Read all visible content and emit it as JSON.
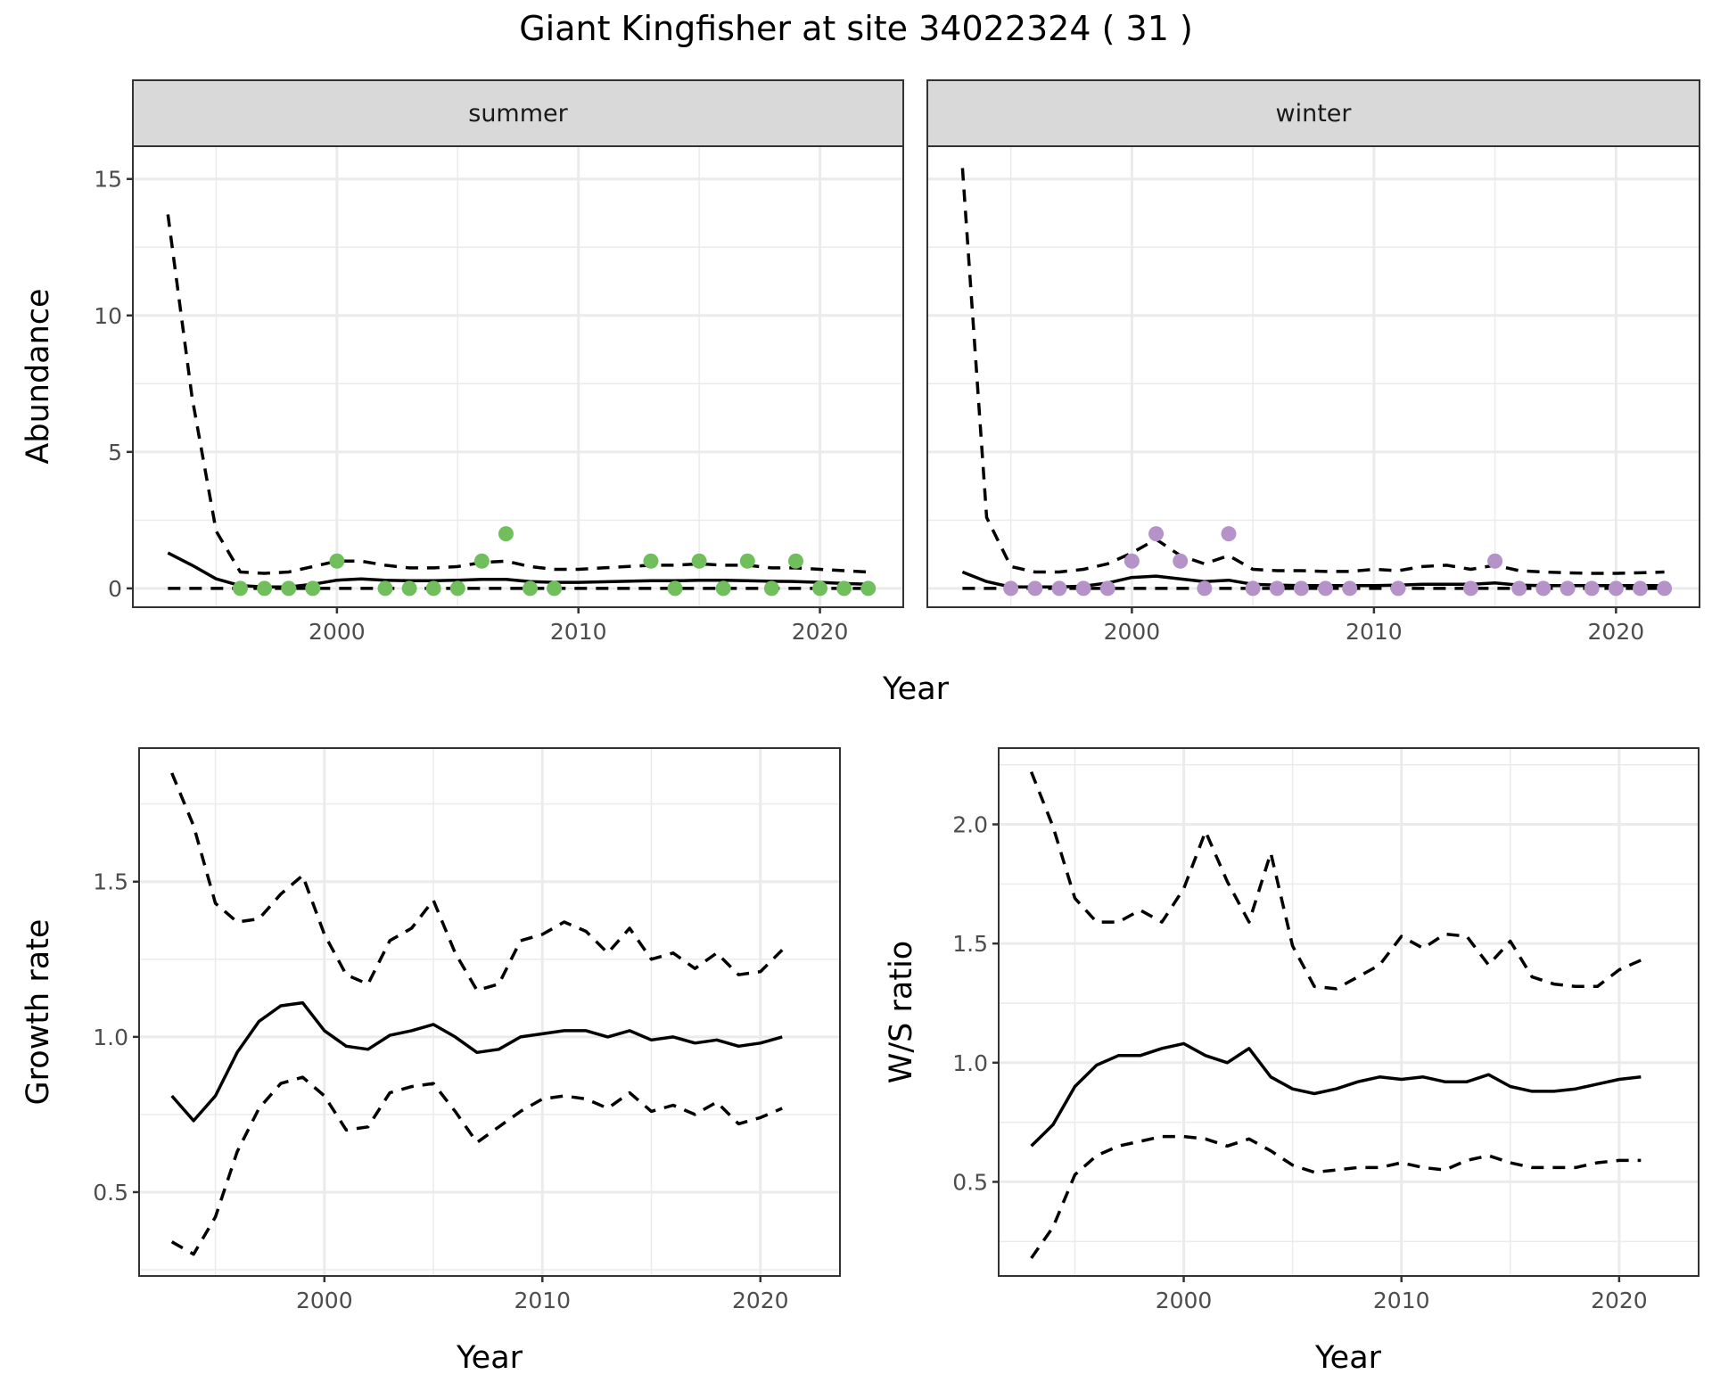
{
  "title": "Giant Kingfisher at site 34022324 ( 31 )",
  "colors": {
    "summer": "#70BF5C",
    "winter": "#B592C8",
    "line": "#000000",
    "grid": "#EBEBEB",
    "strip": "#D9D9D9"
  },
  "chart_data": [
    {
      "type": "line",
      "xlabel": "Year",
      "ylabel": "Abundance",
      "xticks": [
        2000,
        2010,
        2020
      ],
      "yticks": [
        0,
        5,
        10,
        15
      ],
      "xlim": [
        1991.55,
        2023.45
      ],
      "ylim": [
        -0.69,
        16.2
      ],
      "grid": true,
      "facets": [
        {
          "label": "summer",
          "point_color": "#70BF5C",
          "years": [
            1993,
            1994,
            1995,
            1996,
            1997,
            1998,
            1999,
            2000,
            2001,
            2002,
            2003,
            2004,
            2005,
            2006,
            2007,
            2008,
            2009,
            2010,
            2011,
            2012,
            2013,
            2014,
            2015,
            2016,
            2017,
            2018,
            2019,
            2020,
            2021,
            2022
          ],
          "mean": [
            1.3,
            0.85,
            0.35,
            0.1,
            0.05,
            0.05,
            0.15,
            0.3,
            0.35,
            0.3,
            0.28,
            0.28,
            0.3,
            0.33,
            0.33,
            0.25,
            0.22,
            0.22,
            0.24,
            0.26,
            0.28,
            0.28,
            0.3,
            0.3,
            0.28,
            0.26,
            0.25,
            0.22,
            0.18,
            0.15
          ],
          "upper": [
            13.7,
            7.0,
            2.1,
            0.6,
            0.55,
            0.6,
            0.8,
            1.0,
            1.0,
            0.85,
            0.75,
            0.75,
            0.8,
            0.95,
            1.0,
            0.8,
            0.7,
            0.7,
            0.75,
            0.8,
            0.85,
            0.85,
            0.9,
            0.85,
            0.85,
            0.75,
            0.75,
            0.7,
            0.65,
            0.6
          ],
          "lower": [
            0,
            0,
            0,
            0,
            0,
            0,
            0,
            0,
            0,
            0,
            0,
            0,
            0,
            0,
            0,
            0,
            0,
            0,
            0,
            0,
            0,
            0,
            0,
            0,
            0,
            0,
            0,
            0,
            0,
            0
          ],
          "points": [
            [
              1996,
              0
            ],
            [
              1997,
              0
            ],
            [
              1998,
              0
            ],
            [
              1999,
              0
            ],
            [
              2000,
              1
            ],
            [
              2002,
              0
            ],
            [
              2003,
              0
            ],
            [
              2004,
              0
            ],
            [
              2005,
              0
            ],
            [
              2006,
              1
            ],
            [
              2007,
              2
            ],
            [
              2008,
              0
            ],
            [
              2009,
              0
            ],
            [
              2013,
              1
            ],
            [
              2014,
              0
            ],
            [
              2015,
              1
            ],
            [
              2016,
              0
            ],
            [
              2017,
              1
            ],
            [
              2018,
              0
            ],
            [
              2019,
              1
            ],
            [
              2020,
              0
            ],
            [
              2021,
              0
            ],
            [
              2022,
              0
            ]
          ]
        },
        {
          "label": "winter",
          "point_color": "#B592C8",
          "years": [
            1993,
            1994,
            1995,
            1996,
            1997,
            1998,
            1999,
            2000,
            2001,
            2002,
            2003,
            2004,
            2005,
            2006,
            2007,
            2008,
            2009,
            2010,
            2011,
            2012,
            2013,
            2014,
            2015,
            2016,
            2017,
            2018,
            2019,
            2020,
            2021,
            2022
          ],
          "mean": [
            0.6,
            0.25,
            0.05,
            0.05,
            0.05,
            0.08,
            0.2,
            0.4,
            0.45,
            0.35,
            0.25,
            0.3,
            0.15,
            0.12,
            0.1,
            0.1,
            0.1,
            0.1,
            0.12,
            0.15,
            0.15,
            0.15,
            0.2,
            0.12,
            0.1,
            0.1,
            0.1,
            0.1,
            0.1,
            0.1
          ],
          "upper": [
            15.4,
            2.6,
            0.8,
            0.6,
            0.6,
            0.7,
            0.9,
            1.3,
            1.8,
            1.2,
            0.9,
            1.2,
            0.7,
            0.65,
            0.65,
            0.62,
            0.62,
            0.7,
            0.65,
            0.8,
            0.85,
            0.7,
            0.85,
            0.65,
            0.6,
            0.57,
            0.55,
            0.55,
            0.57,
            0.6
          ],
          "lower": [
            0,
            0,
            0,
            0,
            0,
            0,
            0,
            0,
            0,
            0,
            0,
            0,
            0,
            0,
            0,
            0,
            0,
            0,
            0,
            0,
            0,
            0,
            0,
            0,
            0,
            0,
            0,
            0,
            0,
            0
          ],
          "points": [
            [
              1995,
              0
            ],
            [
              1996,
              0
            ],
            [
              1997,
              0
            ],
            [
              1998,
              0
            ],
            [
              1999,
              0
            ],
            [
              2000,
              1
            ],
            [
              2001,
              2
            ],
            [
              2002,
              1
            ],
            [
              2003,
              0
            ],
            [
              2004,
              2
            ],
            [
              2005,
              0
            ],
            [
              2006,
              0
            ],
            [
              2007,
              0
            ],
            [
              2008,
              0
            ],
            [
              2009,
              0
            ],
            [
              2011,
              0
            ],
            [
              2014,
              0
            ],
            [
              2015,
              1
            ],
            [
              2016,
              0
            ],
            [
              2017,
              0
            ],
            [
              2018,
              0
            ],
            [
              2019,
              0
            ],
            [
              2020,
              0
            ],
            [
              2021,
              0
            ],
            [
              2022,
              0
            ]
          ]
        }
      ]
    },
    {
      "type": "line",
      "xlabel": "Year",
      "ylabel": "Growth rate",
      "xticks": [
        2000,
        2010,
        2020
      ],
      "yticks": [
        0.5,
        1.0,
        1.5
      ],
      "ytick_labels": [
        "0.5",
        "1.0",
        "1.5"
      ],
      "xlim": [
        1991.5,
        2023.65
      ],
      "ylim": [
        0.23,
        1.93
      ],
      "grid": true,
      "years": [
        1993,
        1994,
        1995,
        1996,
        1997,
        1998,
        1999,
        2000,
        2001,
        2002,
        2003,
        2004,
        2005,
        2006,
        2007,
        2008,
        2009,
        2010,
        2011,
        2012,
        2013,
        2014,
        2015,
        2016,
        2017,
        2018,
        2019,
        2020,
        2021
      ],
      "mean": [
        0.81,
        0.73,
        0.81,
        0.95,
        1.05,
        1.1,
        1.11,
        1.02,
        0.97,
        0.96,
        1.005,
        1.02,
        1.04,
        1.0,
        0.95,
        0.96,
        1.0,
        1.01,
        1.02,
        1.02,
        1.0,
        1.02,
        0.99,
        1.0,
        0.98,
        0.99,
        0.97,
        0.98,
        1.0
      ],
      "upper": [
        1.85,
        1.68,
        1.43,
        1.37,
        1.38,
        1.46,
        1.52,
        1.33,
        1.2,
        1.17,
        1.31,
        1.35,
        1.44,
        1.27,
        1.15,
        1.17,
        1.31,
        1.33,
        1.37,
        1.34,
        1.27,
        1.35,
        1.25,
        1.27,
        1.22,
        1.27,
        1.2,
        1.21,
        1.28
      ],
      "lower": [
        0.34,
        0.3,
        0.42,
        0.63,
        0.77,
        0.85,
        0.87,
        0.81,
        0.7,
        0.71,
        0.82,
        0.84,
        0.85,
        0.76,
        0.66,
        0.71,
        0.76,
        0.8,
        0.81,
        0.8,
        0.77,
        0.82,
        0.76,
        0.78,
        0.75,
        0.79,
        0.72,
        0.74,
        0.77
      ]
    },
    {
      "type": "line",
      "xlabel": "Year",
      "ylabel": "W/S ratio",
      "xticks": [
        2000,
        2010,
        2020
      ],
      "yticks": [
        0.5,
        1.0,
        1.5,
        2.0
      ],
      "ytick_labels": [
        "0.5",
        "1.0",
        "1.5",
        "2.0"
      ],
      "xlim": [
        1991.5,
        2023.65
      ],
      "ylim": [
        0.105,
        2.32
      ],
      "grid": true,
      "years": [
        1993,
        1994,
        1995,
        1996,
        1997,
        1998,
        1999,
        2000,
        2001,
        2002,
        2003,
        2004,
        2005,
        2006,
        2007,
        2008,
        2009,
        2010,
        2011,
        2012,
        2013,
        2014,
        2015,
        2016,
        2017,
        2018,
        2019,
        2020,
        2021
      ],
      "mean": [
        0.65,
        0.74,
        0.9,
        0.99,
        1.03,
        1.03,
        1.06,
        1.08,
        1.03,
        1.0,
        1.06,
        0.94,
        0.89,
        0.87,
        0.89,
        0.92,
        0.94,
        0.93,
        0.94,
        0.92,
        0.92,
        0.95,
        0.9,
        0.88,
        0.88,
        0.89,
        0.91,
        0.93,
        0.94
      ],
      "upper": [
        2.22,
        1.99,
        1.69,
        1.59,
        1.59,
        1.64,
        1.59,
        1.73,
        1.97,
        1.76,
        1.59,
        1.88,
        1.49,
        1.32,
        1.31,
        1.36,
        1.41,
        1.53,
        1.48,
        1.54,
        1.53,
        1.41,
        1.51,
        1.36,
        1.33,
        1.32,
        1.32,
        1.39,
        1.43
      ],
      "lower": [
        0.18,
        0.31,
        0.53,
        0.61,
        0.65,
        0.67,
        0.69,
        0.69,
        0.68,
        0.65,
        0.68,
        0.63,
        0.57,
        0.54,
        0.55,
        0.56,
        0.56,
        0.58,
        0.56,
        0.55,
        0.59,
        0.61,
        0.58,
        0.56,
        0.56,
        0.56,
        0.58,
        0.59,
        0.59
      ]
    }
  ]
}
